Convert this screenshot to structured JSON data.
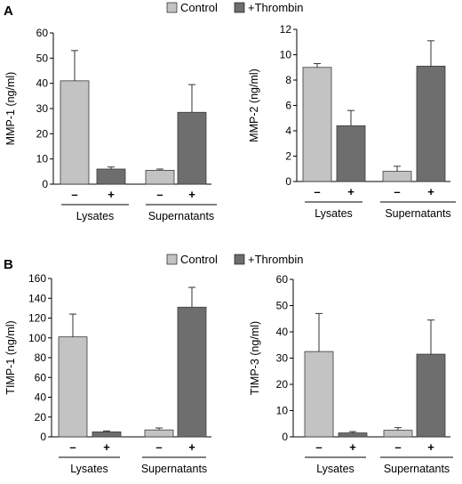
{
  "panels": [
    {
      "label": "A",
      "legend": {
        "control": "Control",
        "thrombin": "+Thrombin"
      }
    },
    {
      "label": "B",
      "legend": {
        "control": "Control",
        "thrombin": "+Thrombin"
      }
    }
  ],
  "colors": {
    "control": "#c3c3c3",
    "thrombin": "#6e6e6e",
    "axis": "#000000"
  },
  "chart_data": [
    {
      "type": "bar",
      "ylabel": "MMP-1 (ng/ml)",
      "ylim": [
        0,
        60
      ],
      "yticks": [
        0,
        10,
        20,
        30,
        40,
        50,
        60
      ],
      "groups": [
        "Lysates",
        "Supernatants"
      ],
      "signs": [
        "–",
        "+"
      ],
      "series": [
        {
          "name": "Control",
          "values": [
            41,
            5.5
          ],
          "errors": [
            12,
            0.5
          ]
        },
        {
          "name": "+Thrombin",
          "values": [
            6,
            28.5
          ],
          "errors": [
            0.8,
            11
          ]
        }
      ]
    },
    {
      "type": "bar",
      "ylabel": "MMP-2 (ng/ml)",
      "ylim": [
        0,
        12
      ],
      "yticks": [
        0,
        2,
        4,
        6,
        8,
        10,
        12
      ],
      "groups": [
        "Lysates",
        "Supernatants"
      ],
      "signs": [
        "–",
        "+"
      ],
      "series": [
        {
          "name": "Control",
          "values": [
            9.0,
            0.8
          ],
          "errors": [
            0.3,
            0.4
          ]
        },
        {
          "name": "+Thrombin",
          "values": [
            4.4,
            9.1
          ],
          "errors": [
            1.2,
            2.0
          ]
        }
      ]
    },
    {
      "type": "bar",
      "ylabel": "TIMP-1 (ng/ml)",
      "ylim": [
        0,
        160
      ],
      "yticks": [
        0,
        20,
        40,
        60,
        80,
        100,
        120,
        140,
        160
      ],
      "groups": [
        "Lysates",
        "Supernatants"
      ],
      "signs": [
        "–",
        "+"
      ],
      "series": [
        {
          "name": "Control",
          "values": [
            101,
            7
          ],
          "errors": [
            23,
            2
          ]
        },
        {
          "name": "+Thrombin",
          "values": [
            5,
            131
          ],
          "errors": [
            1,
            20
          ]
        }
      ]
    },
    {
      "type": "bar",
      "ylabel": "TIMP-3 (ng/ml)",
      "ylim": [
        0,
        60
      ],
      "yticks": [
        0,
        10,
        20,
        30,
        40,
        50,
        60
      ],
      "groups": [
        "Lysates",
        "Supernatants"
      ],
      "signs": [
        "–",
        "+"
      ],
      "series": [
        {
          "name": "Control",
          "values": [
            32.5,
            2.5
          ],
          "errors": [
            14.5,
            1
          ]
        },
        {
          "name": "+Thrombin",
          "values": [
            1.5,
            31.5
          ],
          "errors": [
            0.5,
            13
          ]
        }
      ]
    }
  ]
}
